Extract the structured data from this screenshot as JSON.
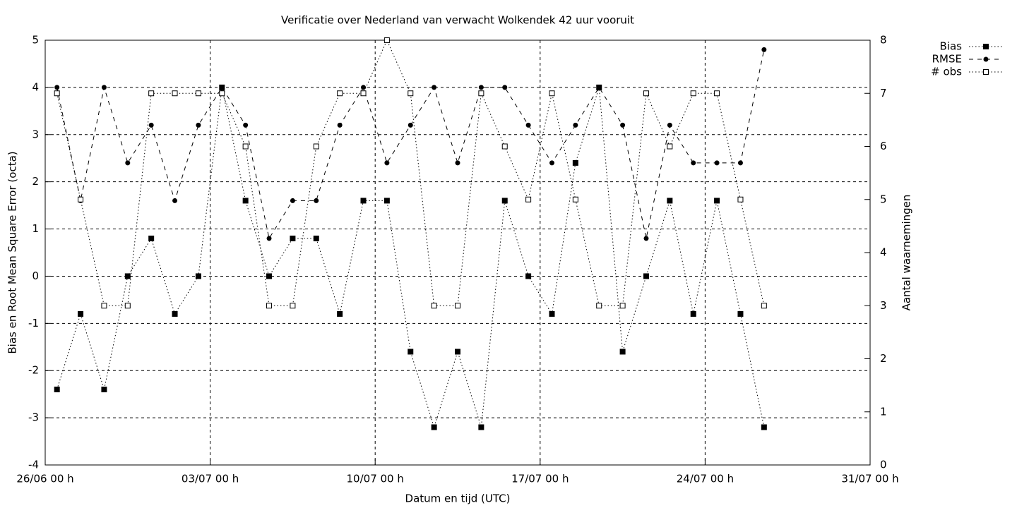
{
  "chart_data": {
    "type": "line",
    "title": "Verificatie over Nederland van verwacht Wolkendek 42 uur vooruit",
    "x_label": "Datum en tijd (UTC)",
    "y_label": "Bias en Root Mean Square Error (octa)",
    "y2_label": "Aantal waarnemingen",
    "x": [
      0.5,
      1.5,
      2.5,
      3.5,
      4.5,
      5.5,
      6.5,
      7.5,
      8.5,
      9.5,
      10.5,
      11.5,
      12.5,
      13.5,
      14.5,
      15.5,
      16.5,
      17.5,
      18.5,
      19.5,
      20.5,
      21.5,
      22.5,
      23.5,
      24.5,
      25.5,
      26.5,
      27.5,
      28.5,
      29.5,
      30.5
    ],
    "xlim": [
      0,
      35
    ],
    "xticks": [
      {
        "value": 0,
        "label": "26/06 00 h"
      },
      {
        "value": 7,
        "label": "03/07 00 h"
      },
      {
        "value": 14,
        "label": "10/07 00 h"
      },
      {
        "value": 21,
        "label": "17/07 00 h"
      },
      {
        "value": 28,
        "label": "24/07 00 h"
      },
      {
        "value": 35,
        "label": "31/07 00 h"
      }
    ],
    "ylim": [
      -4,
      5
    ],
    "yticks": [
      -4,
      -3,
      -2,
      -1,
      0,
      1,
      2,
      3,
      4,
      5
    ],
    "y2lim": [
      0,
      8
    ],
    "y2ticks": [
      0,
      1,
      2,
      3,
      4,
      5,
      6,
      7,
      8
    ],
    "grid": true,
    "legend": "outside-top-right",
    "series": [
      {
        "name": "Bias",
        "color": "#000000",
        "line_style": "dotted",
        "marker": "filled-square",
        "values": [
          -2.4,
          -0.8,
          -2.4,
          0,
          0.8,
          -0.8,
          0,
          4,
          1.6,
          0,
          0.8,
          0.8,
          -0.8,
          1.6,
          1.6,
          -1.6,
          -3.2,
          -1.6,
          -3.2,
          1.6,
          0,
          -0.8,
          2.4,
          4,
          -1.6,
          0,
          1.6,
          -0.8,
          1.6,
          -0.8,
          -3.2
        ]
      },
      {
        "name": "RMSE",
        "color": "#000000",
        "line_style": "dashed",
        "marker": "filled-circle",
        "values": [
          4,
          1.6,
          4,
          2.4,
          3.2,
          1.6,
          3.2,
          4,
          3.2,
          0.8,
          1.6,
          1.6,
          3.2,
          4,
          2.4,
          3.2,
          4,
          2.4,
          4,
          4,
          3.2,
          2.4,
          3.2,
          4,
          3.2,
          0.8,
          3.2,
          2.4,
          2.4,
          2.4,
          4.8
        ]
      },
      {
        "name": "# obs",
        "color": "#000000",
        "line_style": "dotted",
        "marker": "open-square",
        "axis": "y2",
        "values": [
          7,
          5,
          3,
          3,
          7,
          7,
          7,
          7,
          6,
          3,
          3,
          6,
          7,
          7,
          8,
          7,
          3,
          3,
          7,
          6,
          5,
          7,
          5,
          3,
          3,
          7,
          6,
          7,
          7,
          5,
          3
        ]
      }
    ]
  }
}
